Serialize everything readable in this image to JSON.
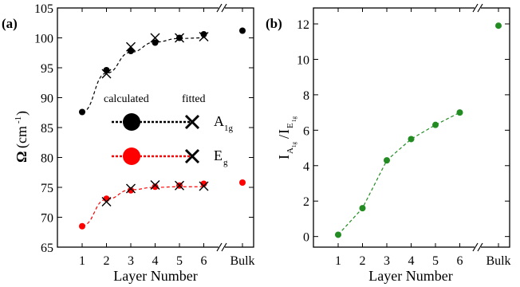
{
  "chart_data": [
    {
      "panel_label": "(a)",
      "type": "scatter",
      "xlabel": "Layer Number",
      "ylabel_main": "Ω",
      "ylabel_unit": "(cm",
      "ylabel_exp": "-1",
      "ylabel_close": ")",
      "x_ticks": [
        "1",
        "2",
        "3",
        "4",
        "5",
        "6",
        "Bulk"
      ],
      "y_ticks": [
        "65",
        "70",
        "75",
        "80",
        "85",
        "90",
        "95",
        "100",
        "105"
      ],
      "ylim": [
        65,
        105
      ],
      "legend": {
        "calculated": "calculated",
        "fitted": "fitted"
      },
      "series": [
        {
          "name_main": "A",
          "name_sub": "1g",
          "color": "#000000",
          "calculated": [
            87.6,
            94.6,
            97.8,
            99.2,
            100.0,
            100.6
          ],
          "fitted": [
            null,
            94.0,
            98.5,
            100.0,
            100.0,
            100.2
          ],
          "bulk": 101.2,
          "fit_curve": [
            87.6,
            94.1,
            97.6,
            99.3,
            99.9,
            100.0
          ]
        },
        {
          "name_main": "E",
          "name_sub": "g",
          "color": "#ff0000",
          "calculated": [
            68.5,
            73.1,
            74.5,
            75.1,
            75.3,
            75.6
          ],
          "fitted": [
            null,
            72.6,
            74.8,
            75.4,
            75.3,
            75.2
          ],
          "bulk": 75.8,
          "fit_curve": [
            68.6,
            73.0,
            74.6,
            75.0,
            75.1,
            75.1
          ]
        }
      ]
    },
    {
      "panel_label": "(b)",
      "type": "line",
      "xlabel": "Layer Number",
      "ylabel_I": "I",
      "ylabel_num_sub": "A",
      "ylabel_num_subsub": "1g",
      "ylabel_den_sub": "E",
      "ylabel_den_subsub": "1g",
      "x_ticks": [
        "1",
        "2",
        "3",
        "4",
        "5",
        "6",
        "Bulk"
      ],
      "y_ticks": [
        "0",
        "2",
        "4",
        "6",
        "8",
        "10",
        "12"
      ],
      "ylim": [
        -0.6,
        12.9
      ],
      "series": [
        {
          "color": "#228b22",
          "values": [
            0.1,
            1.6,
            4.3,
            5.5,
            6.3,
            7.0
          ],
          "bulk": 11.9
        }
      ]
    }
  ]
}
